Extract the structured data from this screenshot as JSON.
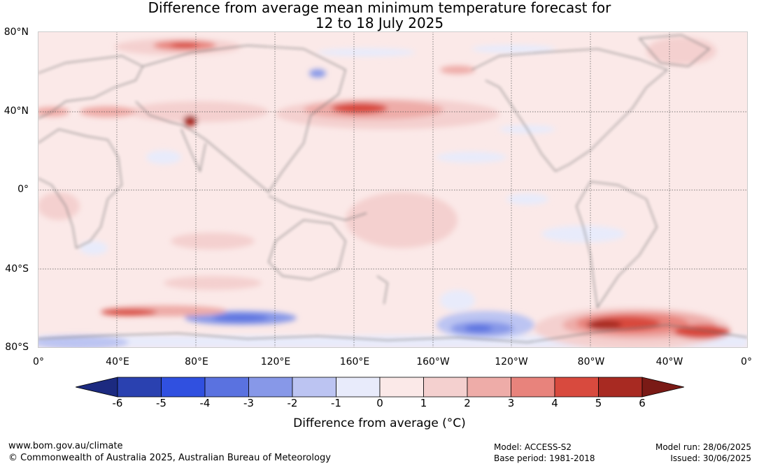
{
  "header": {
    "title_line1": "Difference from average mean minimum temperature forecast for",
    "title_line2": "12 to 18 July 2025"
  },
  "map": {
    "lat_labels": [
      "80°N",
      "40°N",
      "0°",
      "40°S",
      "80°S"
    ],
    "lon_labels": [
      "0°",
      "40°E",
      "80°E",
      "120°E",
      "160°E",
      "160°W",
      "120°W",
      "80°W",
      "40°W",
      "0°"
    ],
    "colors": {
      "ocean_land_base": "#fbe9e8",
      "coastline": "#707070",
      "gridline": "#555555"
    }
  },
  "colorbar": {
    "ticks": [
      "-6",
      "-5",
      "-4",
      "-3",
      "-2",
      "-1",
      "0",
      "1",
      "2",
      "3",
      "4",
      "5",
      "6"
    ],
    "colors": [
      "#1c2a80",
      "#2a41b0",
      "#3050e0",
      "#5a72e0",
      "#8798e8",
      "#bcc4f2",
      "#e8ebfb",
      "#fbe9e8",
      "#f4d0cf",
      "#eeaca8",
      "#e8837c",
      "#d84a3e",
      "#a82a22",
      "#7a1a16"
    ],
    "label": "Difference from average (°C)"
  },
  "footer": {
    "website": "www.bom.gov.au/climate",
    "copyright": "© Commonwealth of Australia 2025, Australian Bureau of Meteorology",
    "model": "Model: ACCESS-S2",
    "base_period": "Base period: 1981-2018",
    "model_run": "Model run: 28/06/2025",
    "issued": "Issued: 30/06/2025"
  }
}
